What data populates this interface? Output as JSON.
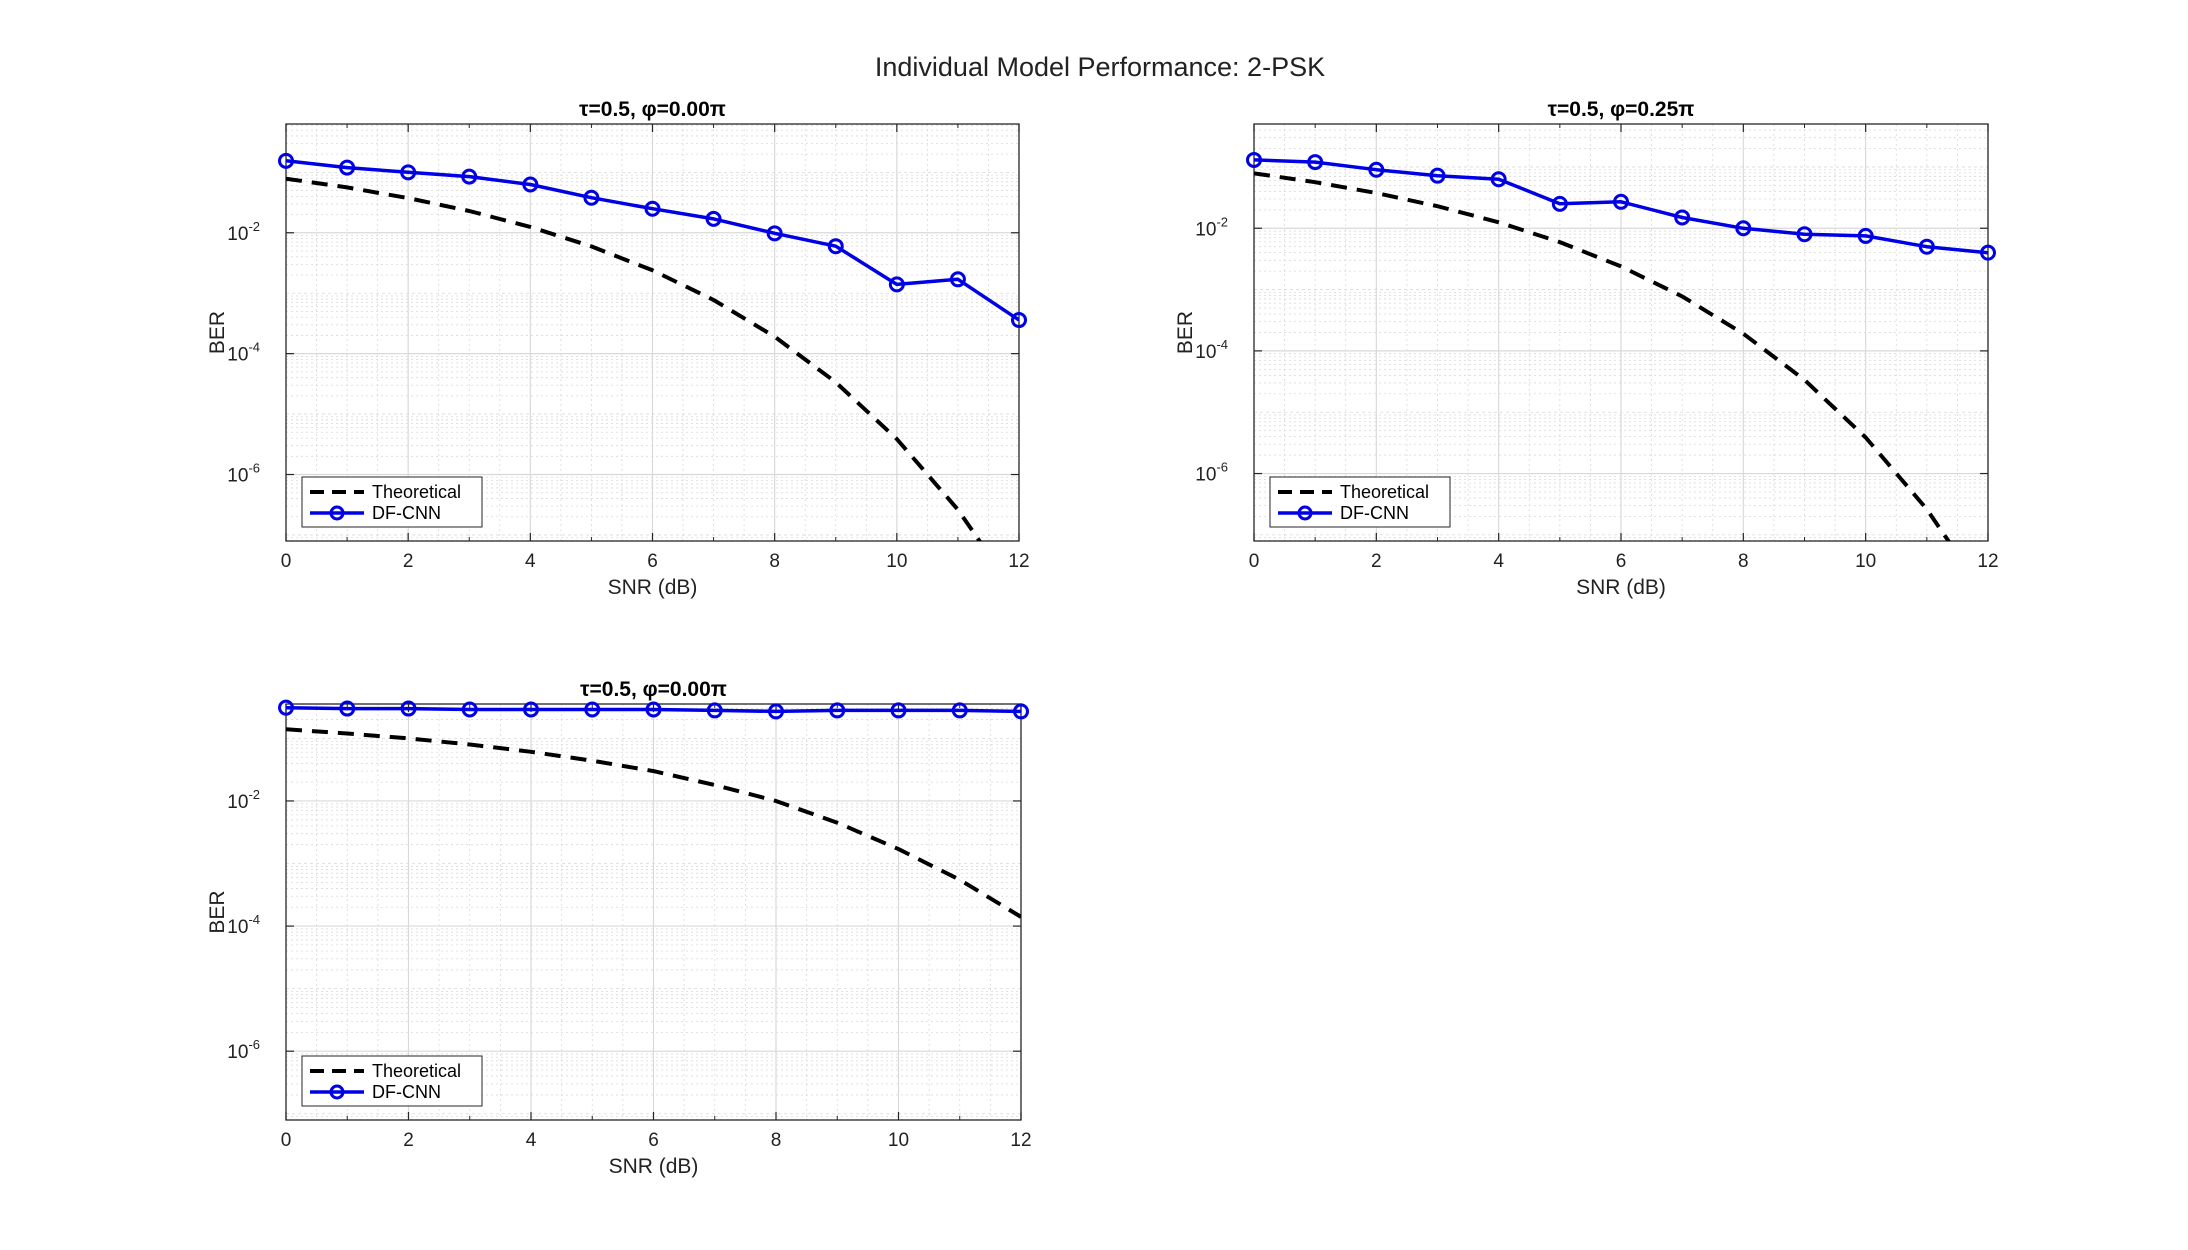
{
  "figure": {
    "title": "Individual Model Performance: 2-PSK"
  },
  "colors": {
    "theoretical": "#000000",
    "dfcnn": "#0000e6",
    "grid": "#d9d9d9",
    "axes": "#262626"
  },
  "chart_data": [
    {
      "type": "line",
      "title": "τ=0.5, φ=0.00π",
      "xlabel": "SNR (dB)",
      "ylabel": "BER",
      "xlim": [
        0,
        12
      ],
      "ylim_exponent": [
        -7.1,
        -0.2
      ],
      "yscale": "log",
      "xticks": [
        "0",
        "2",
        "4",
        "6",
        "8",
        "10",
        "12"
      ],
      "yticks": [
        {
          "base": "10",
          "exp": "-2"
        },
        {
          "base": "10",
          "exp": "-4"
        },
        {
          "base": "10",
          "exp": "-6"
        }
      ],
      "grid": true,
      "legend_position": "bottom-left",
      "x": [
        0,
        1,
        2,
        3,
        4,
        5,
        6,
        7,
        8,
        9,
        10,
        11,
        12
      ],
      "series": [
        {
          "name": "Theoretical",
          "style": "dashed",
          "values": [
            0.0786,
            0.0563,
            0.0375,
            0.0229,
            0.0125,
            0.00595,
            0.00239,
            0.000773,
            0.000191,
            3.36e-05,
            3.87e-06,
            2.62e-07,
            9.01e-09
          ]
        },
        {
          "name": "DF-CNN",
          "style": "solid-marker",
          "values": [
            0.155,
            0.12,
            0.1,
            0.085,
            0.063,
            0.038,
            0.025,
            0.017,
            0.0098,
            0.006,
            0.0014,
            0.0017,
            0.00036
          ]
        }
      ]
    },
    {
      "type": "line",
      "title": "τ=0.5, φ=0.25π",
      "xlabel": "SNR (dB)",
      "ylabel": "BER",
      "xlim": [
        0,
        12
      ],
      "ylim_exponent": [
        -7.1,
        -0.3
      ],
      "yscale": "log",
      "xticks": [
        "0",
        "2",
        "4",
        "6",
        "8",
        "10",
        "12"
      ],
      "yticks": [
        {
          "base": "10",
          "exp": "-2"
        },
        {
          "base": "10",
          "exp": "-4"
        },
        {
          "base": "10",
          "exp": "-6"
        }
      ],
      "grid": true,
      "legend_position": "bottom-left",
      "x": [
        0,
        1,
        2,
        3,
        4,
        5,
        6,
        7,
        8,
        9,
        10,
        11,
        12
      ],
      "series": [
        {
          "name": "Theoretical",
          "style": "dashed",
          "values": [
            0.0786,
            0.0563,
            0.0375,
            0.0229,
            0.0125,
            0.00595,
            0.00239,
            0.000773,
            0.000191,
            3.36e-05,
            3.87e-06,
            2.62e-07,
            9.01e-09
          ]
        },
        {
          "name": "DF-CNN",
          "style": "solid-marker",
          "values": [
            0.13,
            0.12,
            0.09,
            0.072,
            0.063,
            0.025,
            0.027,
            0.015,
            0.01,
            0.008,
            0.0075,
            0.005,
            0.004
          ]
        }
      ]
    },
    {
      "type": "line",
      "title": "τ=0.5, φ=0.00π",
      "xlabel": "SNR (dB)",
      "ylabel": "BER",
      "xlim": [
        0,
        12
      ],
      "ylim_exponent": [
        -7.1,
        -0.45
      ],
      "yscale": "log",
      "xticks": [
        "0",
        "2",
        "4",
        "6",
        "8",
        "10",
        "12"
      ],
      "yticks": [
        {
          "base": "10",
          "exp": "-2"
        },
        {
          "base": "10",
          "exp": "-4"
        },
        {
          "base": "10",
          "exp": "-6"
        }
      ],
      "grid": true,
      "legend_position": "bottom-left",
      "x": [
        0,
        1,
        2,
        3,
        4,
        5,
        6,
        7,
        8,
        9,
        10,
        11,
        12
      ],
      "series": [
        {
          "name": "Theoretical",
          "style": "dashed",
          "values": [
            0.14,
            0.12,
            0.1,
            0.08,
            0.061,
            0.044,
            0.03,
            0.018,
            0.01,
            0.0045,
            0.0017,
            0.00055,
            0.00014
          ]
        },
        {
          "name": "DF-CNN",
          "style": "solid-marker",
          "values": [
            0.31,
            0.3,
            0.3,
            0.29,
            0.29,
            0.29,
            0.29,
            0.28,
            0.27,
            0.28,
            0.28,
            0.28,
            0.27
          ]
        }
      ]
    }
  ]
}
